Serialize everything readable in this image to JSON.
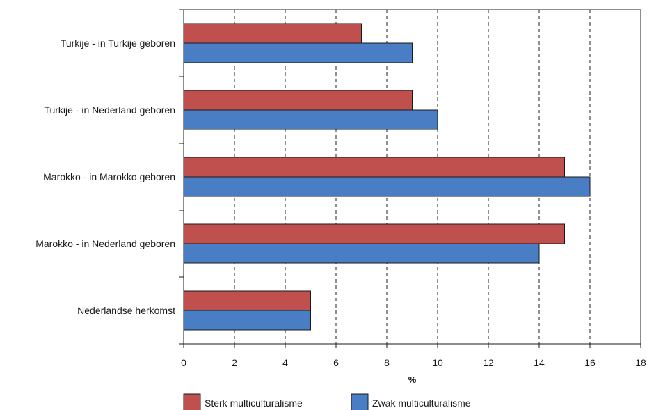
{
  "chart_data": {
    "type": "bar",
    "orientation": "horizontal",
    "categories": [
      "Turkije - in Turkije geboren",
      "Turkije - in Nederland geboren",
      "Marokko - in Marokko geboren",
      "Marokko - in Nederland geboren",
      "Nederlandse herkomst"
    ],
    "series": [
      {
        "name": "Sterk multiculturalisme",
        "values": [
          7,
          9,
          15,
          15,
          5
        ],
        "color": "#c0504d"
      },
      {
        "name": "Zwak multiculturalisme",
        "values": [
          9,
          10,
          16,
          14,
          5
        ],
        "color": "#4a7ec4"
      }
    ],
    "xlabel": "%",
    "ylabel": "",
    "xlim": [
      0,
      18
    ],
    "xticks": [
      "0",
      "2",
      "4",
      "6",
      "8",
      "10",
      "12",
      "14",
      "16",
      "18"
    ],
    "grid": "vertical dashed",
    "legend": "bottom"
  }
}
